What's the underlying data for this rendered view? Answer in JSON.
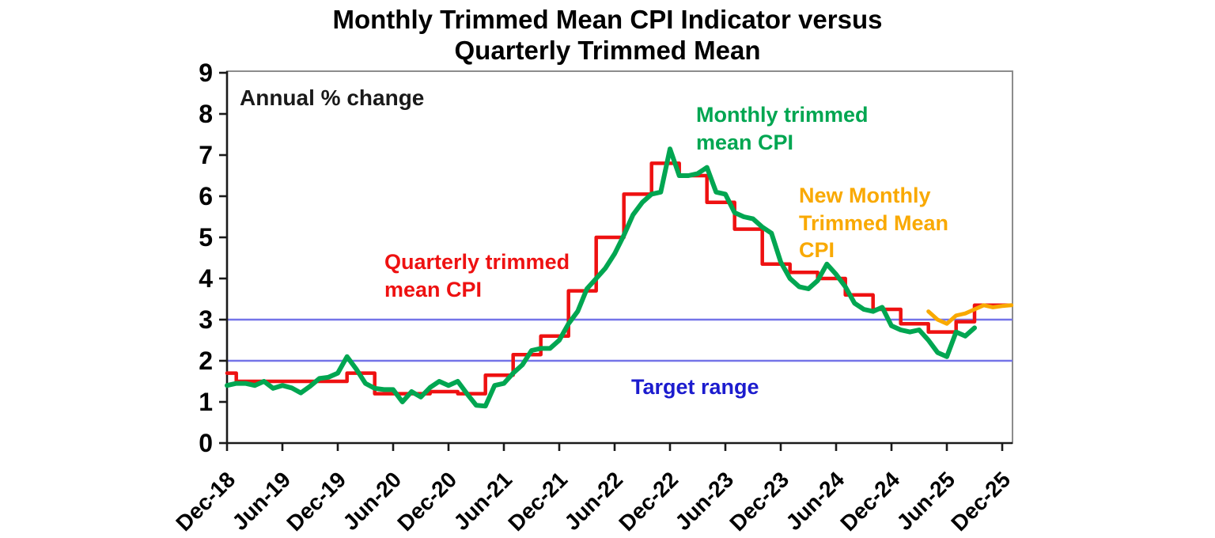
{
  "title": {
    "line1": "Monthly Trimmed Mean CPI Indicator versus",
    "line2": "Quarterly Trimmed Mean"
  },
  "annotations": {
    "y_axis_note": "Annual % change",
    "quarterly_label": "Quarterly trimmed mean CPI",
    "monthly_label": "Monthly trimmed mean CPI",
    "new_monthly_label": "New Monthly Trimmed Mean CPI",
    "target_label": "Target range"
  },
  "colors": {
    "quarterly": "#EE1111",
    "monthly": "#00A651",
    "new_monthly": "#F9A900",
    "target_line": "#7474E8",
    "target_text": "#1C1CCE",
    "axis": "#1a1a1a",
    "border": "#8c8c8c"
  },
  "chart_data": {
    "type": "line",
    "title": "Monthly Trimmed Mean CPI Indicator versus Quarterly Trimmed Mean",
    "ylabel": "Annual % change",
    "ylim": [
      0,
      9
    ],
    "yticks": [
      0,
      1,
      2,
      3,
      4,
      5,
      6,
      7,
      8,
      9
    ],
    "x_unit": "months since Dec-2018",
    "xlim_months": [
      0,
      85
    ],
    "x_ticks": [
      {
        "month": 0,
        "label": "Dec-18"
      },
      {
        "month": 6,
        "label": "Jun-19"
      },
      {
        "month": 12,
        "label": "Dec-19"
      },
      {
        "month": 18,
        "label": "Jun-20"
      },
      {
        "month": 24,
        "label": "Dec-20"
      },
      {
        "month": 30,
        "label": "Jun-21"
      },
      {
        "month": 36,
        "label": "Dec-21"
      },
      {
        "month": 42,
        "label": "Jun-22"
      },
      {
        "month": 48,
        "label": "Dec-22"
      },
      {
        "month": 54,
        "label": "Jun-23"
      },
      {
        "month": 60,
        "label": "Dec-23"
      },
      {
        "month": 66,
        "label": "Jun-24"
      },
      {
        "month": 72,
        "label": "Dec-24"
      },
      {
        "month": 78,
        "label": "Jun-25"
      },
      {
        "month": 84,
        "label": "Dec-25"
      }
    ],
    "target_range": {
      "lower": 2,
      "upper": 3,
      "label": "Target range"
    },
    "series": [
      {
        "name": "Quarterly trimmed mean CPI",
        "color_key": "quarterly",
        "style": "step",
        "start_month": 0,
        "values": [
          1.7,
          1.5,
          1.5,
          1.5,
          1.5,
          1.5,
          1.5,
          1.5,
          1.5,
          1.5,
          1.5,
          1.5,
          1.5,
          1.7,
          1.7,
          1.7,
          1.2,
          1.2,
          1.2,
          1.2,
          1.2,
          1.2,
          1.25,
          1.25,
          1.25,
          1.2,
          1.2,
          1.2,
          1.65,
          1.65,
          1.65,
          2.15,
          2.15,
          2.15,
          2.6,
          2.6,
          2.6,
          3.7,
          3.7,
          3.7,
          5.0,
          5.0,
          5.0,
          6.05,
          6.05,
          6.05,
          6.8,
          6.8,
          6.8,
          6.5,
          6.5,
          6.5,
          5.85,
          5.85,
          5.85,
          5.2,
          5.2,
          5.2,
          4.35,
          4.35,
          4.35,
          4.15,
          4.15,
          4.15,
          4.0,
          4.0,
          4.0,
          3.6,
          3.6,
          3.6,
          3.25,
          3.25,
          3.25,
          2.9,
          2.9,
          2.9,
          2.7,
          2.7,
          2.7,
          2.95,
          2.95,
          3.35,
          3.35,
          3.35,
          3.35,
          3.35
        ]
      },
      {
        "name": "New Monthly Trimmed Mean CPI",
        "color_key": "new_monthly",
        "style": "line",
        "start_month": 76,
        "values": [
          3.2,
          3.0,
          2.9,
          3.1,
          3.15,
          3.25,
          3.35,
          3.3,
          3.33,
          3.35
        ]
      },
      {
        "name": "Monthly trimmed mean CPI",
        "color_key": "monthly",
        "style": "line",
        "start_month": 0,
        "values": [
          1.4,
          1.45,
          1.45,
          1.4,
          1.5,
          1.33,
          1.4,
          1.34,
          1.22,
          1.38,
          1.57,
          1.6,
          1.7,
          2.1,
          1.8,
          1.45,
          1.33,
          1.3,
          1.3,
          1.0,
          1.25,
          1.12,
          1.35,
          1.5,
          1.4,
          1.5,
          1.2,
          0.92,
          0.9,
          1.4,
          1.45,
          1.7,
          1.9,
          2.25,
          2.3,
          2.3,
          2.5,
          2.9,
          3.2,
          3.75,
          4.0,
          4.25,
          4.6,
          5.05,
          5.55,
          5.85,
          6.05,
          6.1,
          7.15,
          6.5,
          6.5,
          6.55,
          6.7,
          6.1,
          6.05,
          5.6,
          5.5,
          5.45,
          5.25,
          5.1,
          4.4,
          4.0,
          3.8,
          3.75,
          3.95,
          4.35,
          4.1,
          3.8,
          3.4,
          3.25,
          3.2,
          3.3,
          2.85,
          2.75,
          2.7,
          2.75,
          2.5,
          2.2,
          2.1,
          2.7,
          2.6,
          2.8
        ]
      }
    ]
  }
}
